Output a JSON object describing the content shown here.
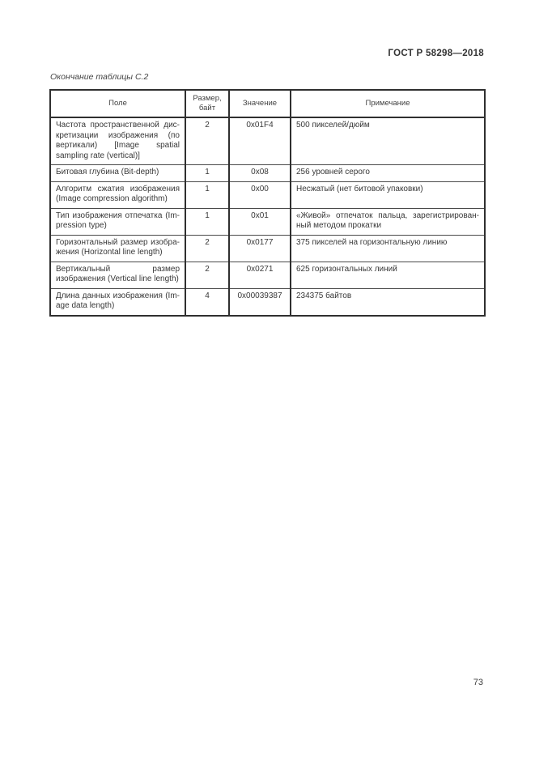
{
  "page": {
    "doc_number": "ГОСТ Р 58298—2018",
    "caption": "Окончание таблицы С.2",
    "page_number": "73"
  },
  "table": {
    "headers": [
      "Поле",
      "Размер, байт",
      "Значение",
      "Примечание"
    ],
    "rows": [
      {
        "field": "Частота пространственной дис­кретизации изображения (по вер­тикали) [Image spatial sampling rate (vertical)]",
        "size": "2",
        "value": "0x01F4",
        "note": "500 пикселей/дюйм"
      },
      {
        "field": "Битовая глубина (Bit-depth)",
        "size": "1",
        "value": "0x08",
        "note": "256 уровней серого"
      },
      {
        "field": "Алгоритм сжатия изображения (Image compression algorithm)",
        "size": "1",
        "value": "0x00",
        "note": "Несжатый (нет битовой упаковки)"
      },
      {
        "field": "Тип изображения отпечатка (Im­pression type)",
        "size": "1",
        "value": "0x01",
        "note": "«Живой» отпечаток пальца, зарегистрирован­ный методом прокатки"
      },
      {
        "field": "Горизонтальный размер изобра­жения (Horizontal line length)",
        "size": "2",
        "value": "0x0177",
        "note": "375 пикселей на горизонтальную линию"
      },
      {
        "field": "Вертикальный размер изображе­ния (Vertical line length)",
        "size": "2",
        "value": "0x0271",
        "note": "625 горизонтальных линий"
      },
      {
        "field": "Длина данных изображения (Im­age data length)",
        "size": "4",
        "value": "0x00039387",
        "note": "234375 байтов"
      }
    ]
  }
}
